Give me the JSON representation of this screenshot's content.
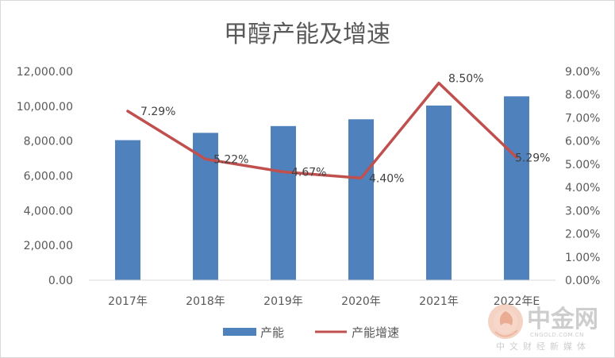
{
  "chart_data": {
    "type": "bar+line",
    "title": "甲醇产能及增速",
    "categories": [
      "2017年",
      "2018年",
      "2019年",
      "2020年",
      "2021年",
      "2022年E"
    ],
    "series": [
      {
        "name": "产能",
        "type": "bar",
        "axis": "left",
        "color": "#4f81bd",
        "values": [
          8050,
          8470,
          8860,
          9250,
          10040,
          10570
        ]
      },
      {
        "name": "产能增速",
        "type": "line",
        "axis": "right",
        "color": "#c0504d",
        "values": [
          7.29,
          5.22,
          4.67,
          4.4,
          8.5,
          5.29
        ],
        "labels": [
          "7.29%",
          "5.22%",
          "4.67%",
          "4.40%",
          "8.50%",
          "5.29%"
        ]
      }
    ],
    "y_left": {
      "min": 0,
      "max": 12000,
      "step": 2000,
      "ticks": [
        "0.00",
        "2,000.00",
        "4,000.00",
        "6,000.00",
        "8,000.00",
        "10,000.00",
        "12,000.00"
      ]
    },
    "y_right": {
      "min": 0,
      "max": 9,
      "step": 1,
      "ticks": [
        "0.00%",
        "1.00%",
        "2.00%",
        "3.00%",
        "4.00%",
        "5.00%",
        "6.00%",
        "7.00%",
        "8.00%",
        "9.00%"
      ]
    },
    "legend": {
      "position": "bottom",
      "items": [
        {
          "label": "产能",
          "color": "#4f81bd",
          "kind": "bar"
        },
        {
          "label": "产能增速",
          "color": "#c0504d",
          "kind": "line"
        }
      ]
    },
    "grid": false
  },
  "watermark": {
    "brand": "中金网",
    "domain": "CNGOLD.COM.CN",
    "tagline": "中文财经新媒体",
    "icon": "cngold-logo-icon"
  }
}
